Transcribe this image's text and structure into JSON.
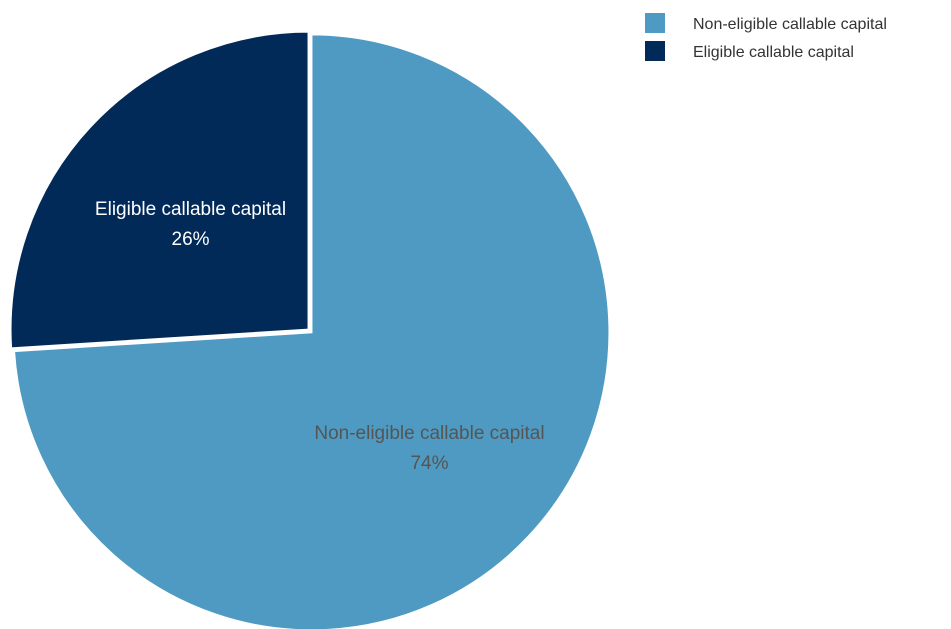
{
  "chart_data": {
    "type": "pie",
    "title": "",
    "slices": [
      {
        "name": "Non-eligible callable capital",
        "value": 74,
        "value_label": "74%",
        "color": "#4f9ac2",
        "label_color": "#555555"
      },
      {
        "name": "Eligible callable capital",
        "value": 26,
        "value_label": "26%",
        "color": "#022a58",
        "label_color": "#ffffff"
      }
    ],
    "start_angle_deg": 0,
    "direction": "clockwise",
    "legend_position": "top-right",
    "slice_labels_inside": true
  }
}
